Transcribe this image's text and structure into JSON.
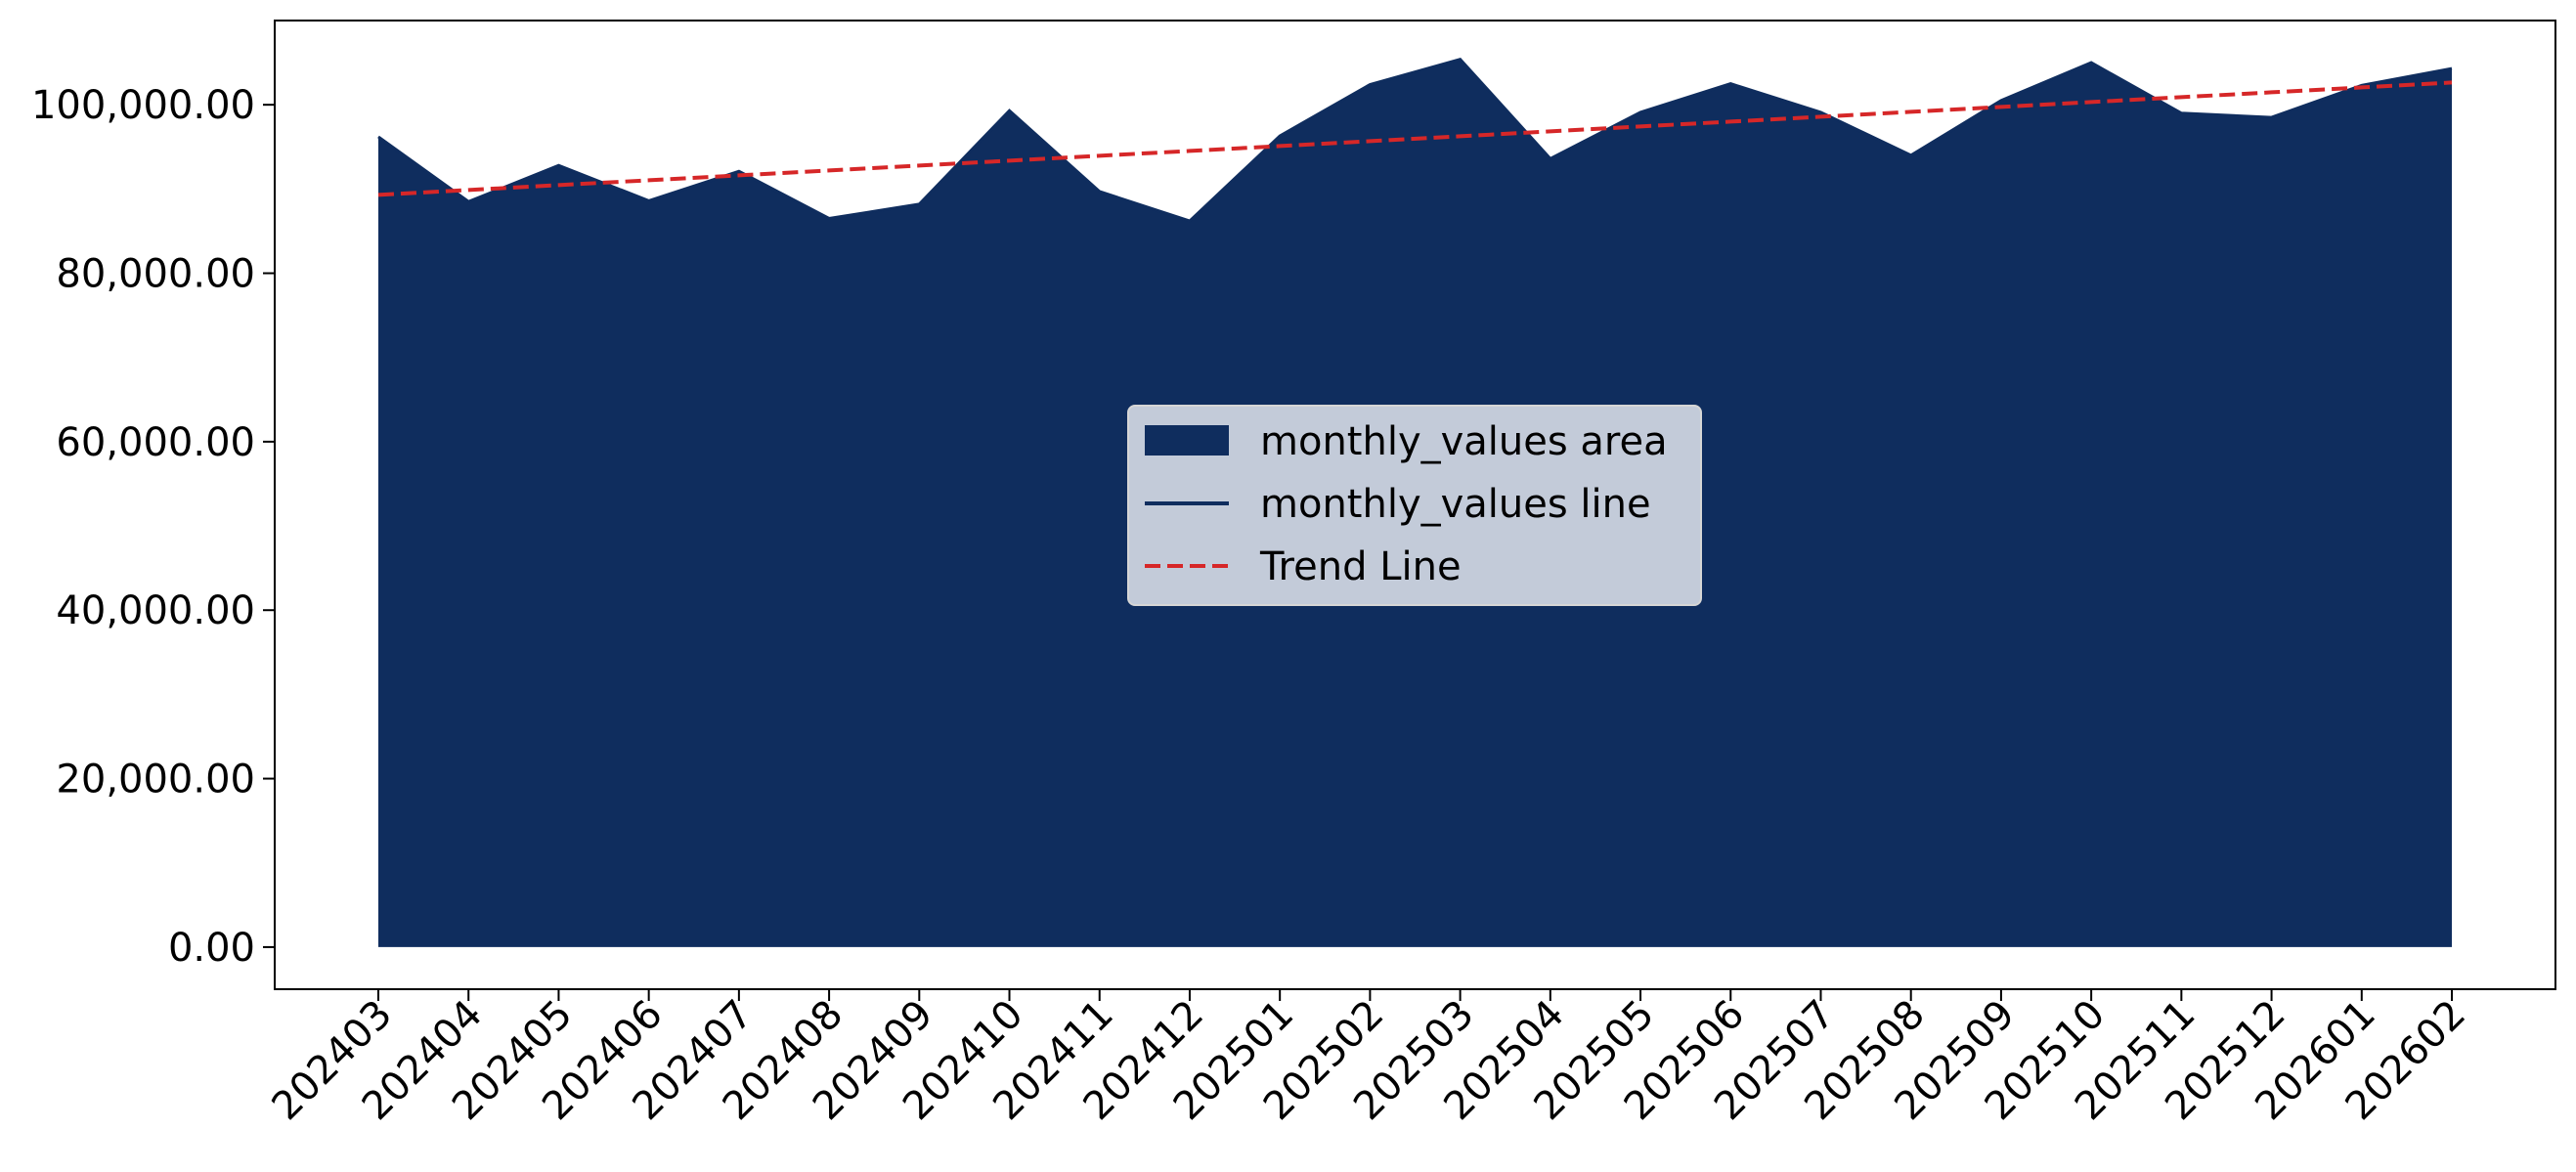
{
  "chart_data": {
    "type": "area",
    "title": "",
    "xlabel": "",
    "ylabel": "",
    "categories": [
      "202403",
      "202404",
      "202405",
      "202406",
      "202407",
      "202408",
      "202409",
      "202410",
      "202411",
      "202412",
      "202501",
      "202502",
      "202503",
      "202504",
      "202505",
      "202506",
      "202507",
      "202508",
      "202509",
      "202510",
      "202511",
      "202512",
      "202601",
      "202602"
    ],
    "series": [
      {
        "name": "monthly_values area",
        "kind": "area",
        "color": "#0f2d5e",
        "values": [
          96200,
          88500,
          92800,
          88600,
          92100,
          86500,
          88200,
          99300,
          89700,
          86200,
          96300,
          102400,
          105400,
          93600,
          99100,
          102500,
          99100,
          94000,
          100500,
          105000,
          99000,
          98500,
          102300,
          104300
        ]
      },
      {
        "name": "monthly_values line",
        "kind": "line",
        "color": "#0f2d5e",
        "values": [
          96200,
          88500,
          92800,
          88600,
          92100,
          86500,
          88200,
          99300,
          89700,
          86200,
          96300,
          102400,
          105400,
          93600,
          99100,
          102500,
          99100,
          94000,
          100500,
          105000,
          99000,
          98500,
          102300,
          104300
        ]
      },
      {
        "name": "Trend Line",
        "kind": "dashed-line",
        "color": "#d62728",
        "values": [
          89300,
          89880,
          90460,
          91040,
          91620,
          92200,
          92780,
          93360,
          93940,
          94520,
          95100,
          95680,
          96260,
          96840,
          97420,
          98000,
          98580,
          99160,
          99740,
          100320,
          100900,
          101480,
          102060,
          102640
        ]
      }
    ],
    "ylim": [
      -5000,
      110000
    ],
    "yticks": [
      0,
      20000,
      40000,
      60000,
      80000,
      100000
    ],
    "ytick_labels": [
      "0.00",
      "20,000.00",
      "40,000.00",
      "60,000.00",
      "80,000.00",
      "100,000.00"
    ],
    "grid": false,
    "legend_position": "center",
    "legend_background": "#cdd4df"
  }
}
